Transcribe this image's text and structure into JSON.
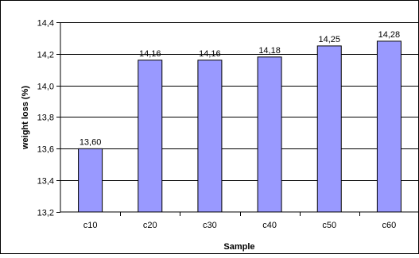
{
  "chart_data": {
    "type": "bar",
    "categories": [
      "c10",
      "c20",
      "c30",
      "c40",
      "c50",
      "c60"
    ],
    "values": [
      13.6,
      14.16,
      14.16,
      14.18,
      14.25,
      14.28
    ],
    "data_labels": [
      "13,60",
      "14,16",
      "14,16",
      "14,18",
      "14,25",
      "14,28"
    ],
    "xlabel": "Sample",
    "ylabel": "weight loss (%)",
    "ylim": [
      13.2,
      14.4
    ],
    "yticks": [
      13.2,
      13.4,
      13.6,
      13.8,
      14.0,
      14.2,
      14.4
    ],
    "ytick_labels": [
      "13,2",
      "13,4",
      "13,6",
      "13,8",
      "14,0",
      "14,2",
      "14,4"
    ],
    "grid": "horizontal",
    "legend": "none",
    "colors": {
      "bar_fill": "#9999ff",
      "bar_stroke": "#000000",
      "grid": "#000000",
      "background": "#ffffff"
    }
  }
}
